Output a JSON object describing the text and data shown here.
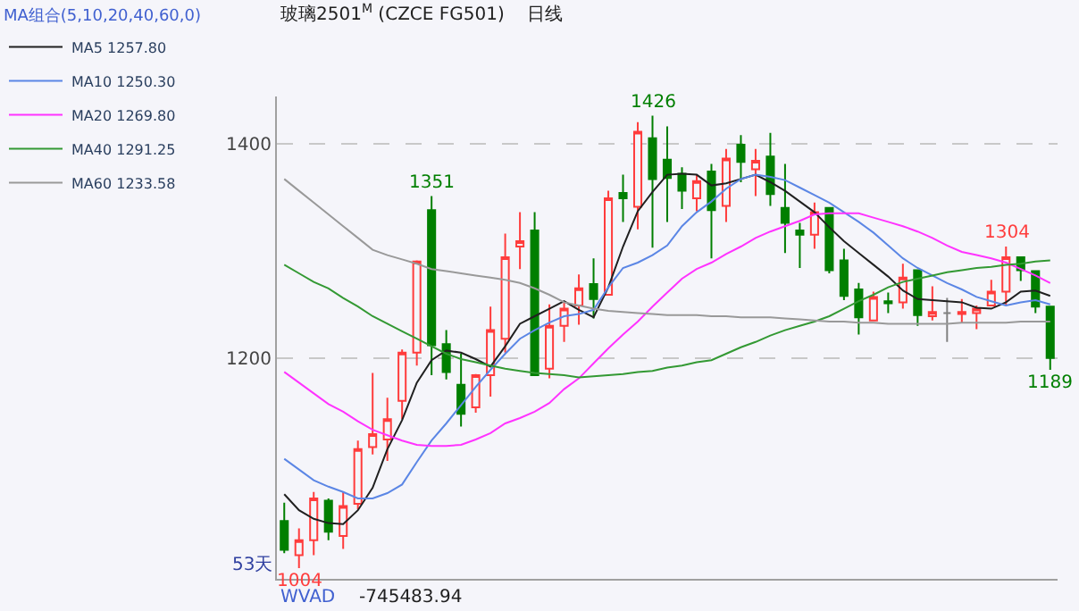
{
  "chart_data": {
    "type": "candlestick",
    "title": "玻璃2501$^{M}$ (CZCE FG501)",
    "subtitle": "日线",
    "legend_title": "MA组合(5,10,20,40,60,0)",
    "legend": "top left",
    "grid": "y",
    "ylim": [
      994,
      1444
    ],
    "yticks": [
      1200,
      1400
    ],
    "tick_labels": "y",
    "categories": [
      null,
      null,
      null,
      null,
      null,
      null,
      null,
      null,
      null,
      null,
      null,
      null,
      null,
      null,
      null,
      null,
      null,
      null,
      null,
      null,
      null,
      null,
      null,
      null,
      null,
      null,
      null,
      null,
      null,
      null,
      null,
      null,
      null,
      null,
      null,
      null,
      null,
      null,
      null,
      null,
      null,
      null,
      null,
      null,
      null,
      null,
      null,
      null,
      null,
      null,
      null,
      null,
      null
    ],
    "ohlc": [
      [
        1048,
        1065,
        1018,
        1021
      ],
      [
        1016,
        1041,
        1004,
        1030
      ],
      [
        1030,
        1075,
        1016,
        1069
      ],
      [
        1067,
        1069,
        1030,
        1038
      ],
      [
        1034,
        1075,
        1022,
        1062
      ],
      [
        1064,
        1123,
        1059,
        1115
      ],
      [
        1117,
        1186,
        1110,
        1129
      ],
      [
        1124,
        1163,
        1104,
        1143
      ],
      [
        1160,
        1208,
        1143,
        1205
      ],
      [
        1205,
        1291,
        1193,
        1290
      ],
      [
        1338,
        1351,
        1184,
        1212
      ],
      [
        1213,
        1226,
        1180,
        1187
      ],
      [
        1175,
        1204,
        1136,
        1148
      ],
      [
        1154,
        1185,
        1149,
        1184
      ],
      [
        1184,
        1248,
        1164,
        1226
      ],
      [
        1218,
        1316,
        1205,
        1294
      ],
      [
        1304,
        1336,
        1283,
        1309
      ],
      [
        1319,
        1336,
        1184,
        1184
      ],
      [
        1190,
        1250,
        1181,
        1230
      ],
      [
        1230,
        1252,
        1215,
        1246
      ],
      [
        1249,
        1278,
        1231,
        1265
      ],
      [
        1269,
        1293,
        1237,
        1255
      ],
      [
        1259,
        1356,
        1259,
        1349
      ],
      [
        1354,
        1371,
        1327,
        1349
      ],
      [
        1341,
        1420,
        1320,
        1411
      ],
      [
        1405,
        1426,
        1303,
        1367
      ],
      [
        1385,
        1416,
        1327,
        1368
      ],
      [
        1372,
        1378,
        1339,
        1356
      ],
      [
        1349,
        1371,
        1337,
        1365
      ],
      [
        1374,
        1381,
        1293,
        1338
      ],
      [
        1342,
        1395,
        1327,
        1386
      ],
      [
        1399,
        1408,
        1364,
        1383
      ],
      [
        1376,
        1395,
        1351,
        1384
      ],
      [
        1388,
        1410,
        1342,
        1353
      ],
      [
        1340,
        1381,
        1298,
        1326
      ],
      [
        1319,
        1326,
        1284,
        1315
      ],
      [
        1315,
        1345,
        1302,
        1336
      ],
      [
        1340,
        1340,
        1279,
        1282
      ],
      [
        1291,
        1302,
        1254,
        1258
      ],
      [
        1264,
        1270,
        1222,
        1238
      ],
      [
        1235,
        1262,
        1235,
        1257
      ],
      [
        1253,
        1261,
        1242,
        1251
      ],
      [
        1252,
        1288,
        1246,
        1275
      ],
      [
        1282,
        1282,
        1230,
        1240
      ],
      [
        1239,
        1267,
        1235,
        1243
      ],
      [
        1242,
        1256,
        1215,
        1242
      ],
      [
        1241,
        1255,
        1233,
        1243
      ],
      [
        1242,
        1249,
        1227,
        1246
      ],
      [
        1249,
        1273,
        1249,
        1262
      ],
      [
        1262,
        1304,
        1249,
        1294
      ],
      [
        1294,
        1294,
        1272,
        1282
      ],
      [
        1281,
        1281,
        1242,
        1248
      ],
      [
        1248,
        1248,
        1189,
        1200
      ]
    ],
    "colors": [
      "#007f00",
      "#ff3c3c",
      "#ff3c3c",
      "#007f00",
      "#ff3c3c",
      "#ff3c3c",
      "#ff3c3c",
      "#ff3c3c",
      "#ff3c3c",
      "#ff3c3c",
      "#007f00",
      "#007f00",
      "#007f00",
      "#ff3c3c",
      "#ff3c3c",
      "#ff3c3c",
      "#ff3c3c",
      "#007f00",
      "#ff3c3c",
      "#ff3c3c",
      "#ff3c3c",
      "#007f00",
      "#ff3c3c",
      "#007f00",
      "#ff3c3c",
      "#007f00",
      "#007f00",
      "#007f00",
      "#ff3c3c",
      "#007f00",
      "#ff3c3c",
      "#007f00",
      "#ff3c3c",
      "#007f00",
      "#007f00",
      "#007f00",
      "#ff3c3c",
      "#007f00",
      "#007f00",
      "#007f00",
      "#ff3c3c",
      "#007f00",
      "#ff3c3c",
      "#007f00",
      "#ff3c3c",
      "#808080",
      "#ff3c3c",
      "#ff3c3c",
      "#ff3c3c",
      "#ff3c3c",
      "#007f00",
      "#007f00",
      "#007f00"
    ],
    "series": [
      {
        "name": "MA5 1257.80",
        "type": "line",
        "color": "#202020",
        "values": [
          1073,
          1058,
          1050,
          1046,
          1045,
          1058,
          1079,
          1115,
          1142,
          1177,
          1198,
          1207,
          1205,
          1199,
          1192,
          1211,
          1232,
          1239,
          1246,
          1253,
          1245,
          1238,
          1266,
          1304,
          1337,
          1355,
          1371,
          1372,
          1371,
          1361,
          1363,
          1367,
          1371,
          1364,
          1356,
          1346,
          1336,
          1322,
          1309,
          1298,
          1287,
          1276,
          1263,
          1255,
          1254,
          1253,
          1252,
          1247,
          1246,
          1252,
          1262,
          1263,
          1258
        ]
      },
      {
        "name": "MA10 1250.30",
        "type": "line",
        "color": "#5b86e5",
        "values": [
          1106,
          1096,
          1086,
          1080,
          1075,
          1069,
          1069,
          1074,
          1082,
          1103,
          1123,
          1139,
          1156,
          1173,
          1189,
          1204,
          1218,
          1226,
          1233,
          1239,
          1241,
          1245,
          1266,
          1284,
          1289,
          1296,
          1305,
          1323,
          1336,
          1346,
          1358,
          1367,
          1371,
          1369,
          1366,
          1359,
          1352,
          1345,
          1336,
          1327,
          1317,
          1305,
          1293,
          1284,
          1277,
          1270,
          1264,
          1257,
          1253,
          1249,
          1252,
          1254,
          1250
        ]
      },
      {
        "name": "MA20 1269.80",
        "type": "line",
        "color": "#ff33ff",
        "values": [
          1187,
          1177,
          1167,
          1157,
          1150,
          1141,
          1133,
          1128,
          1123,
          1119,
          1118,
          1118,
          1119,
          1124,
          1130,
          1139,
          1144,
          1150,
          1158,
          1171,
          1181,
          1195,
          1209,
          1222,
          1234,
          1248,
          1261,
          1274,
          1283,
          1289,
          1297,
          1304,
          1312,
          1318,
          1323,
          1328,
          1334,
          1335,
          1335,
          1335,
          1331,
          1327,
          1323,
          1318,
          1312,
          1305,
          1299,
          1296,
          1293,
          1289,
          1283,
          1277,
          1270
        ]
      },
      {
        "name": "MA40 1291.25",
        "type": "line",
        "color": "#339933",
        "values": [
          1287,
          1279,
          1271,
          1265,
          1256,
          1248,
          1239,
          1232,
          1225,
          1218,
          1211,
          1204,
          1199,
          1196,
          1193,
          1190,
          1188,
          1186,
          1185,
          1184,
          1182,
          1183,
          1184,
          1185,
          1187,
          1188,
          1191,
          1193,
          1196,
          1198,
          1204,
          1210,
          1215,
          1221,
          1226,
          1230,
          1234,
          1239,
          1246,
          1253,
          1259,
          1266,
          1271,
          1274,
          1277,
          1280,
          1282,
          1284,
          1285,
          1287,
          1288,
          1290,
          1291
        ]
      },
      {
        "name": "MA60 1233.58",
        "type": "line",
        "color": "#999999",
        "values": [
          1367,
          1356,
          1345,
          1334,
          1323,
          1312,
          1301,
          1296,
          1292,
          1288,
          1283,
          1281,
          1279,
          1277,
          1275,
          1273,
          1270,
          1265,
          1259,
          1252,
          1249,
          1246,
          1244,
          1243,
          1242,
          1241,
          1240,
          1240,
          1240,
          1239,
          1239,
          1238,
          1238,
          1238,
          1237,
          1236,
          1235,
          1234,
          1234,
          1233,
          1233,
          1232,
          1232,
          1232,
          1232,
          1232,
          1233,
          1233,
          1233,
          1233,
          1234,
          1234,
          1234
        ]
      }
    ],
    "annotations": [
      {
        "text": "1351",
        "y": 1351
      },
      {
        "text": "1426",
        "y": 1426
      },
      {
        "text": "1304",
        "y": 1304
      },
      {
        "text": "1189",
        "y": 1189
      },
      {
        "text": "1004",
        "y": 1004
      },
      "53天",
      "WVAD",
      "-745483.94"
    ]
  }
}
